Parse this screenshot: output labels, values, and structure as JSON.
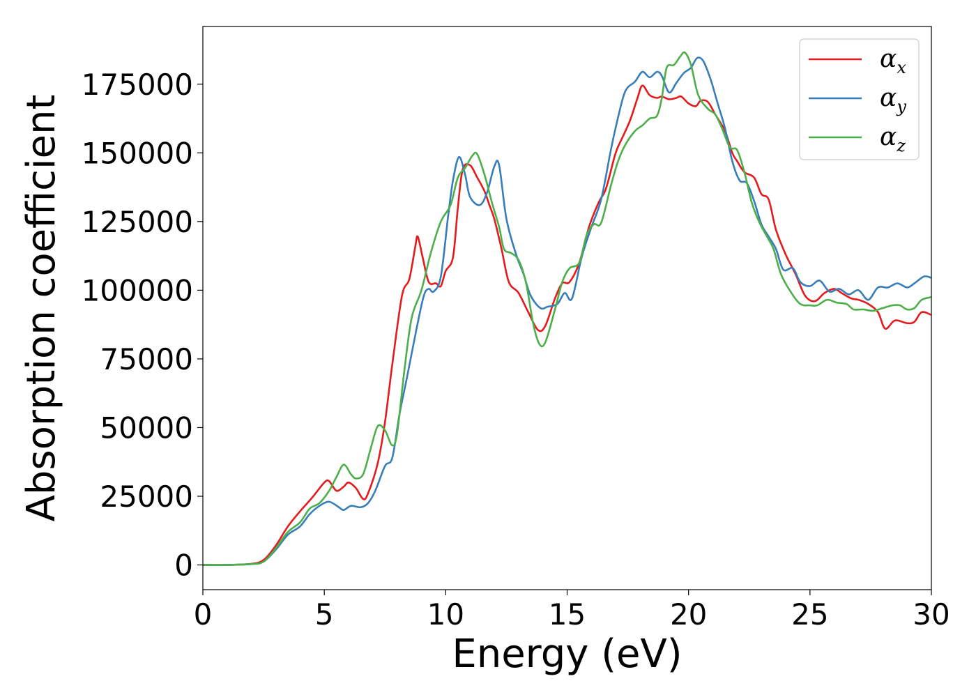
{
  "chart_data": {
    "type": "line",
    "xlabel": "Energy (eV)",
    "ylabel": "Absorption coefficient",
    "xlim": [
      0,
      30
    ],
    "ylim": [
      -9000,
      196000
    ],
    "xticks": [
      0,
      5,
      10,
      15,
      20,
      25,
      30
    ],
    "yticks": [
      0,
      25000,
      50000,
      75000,
      100000,
      125000,
      150000,
      175000
    ],
    "grid": false,
    "legend_position": "top-right",
    "series": [
      {
        "name": "αx",
        "legend_base": "α",
        "legend_sub": "x",
        "color": "#e41a1c",
        "points": [
          [
            0,
            0
          ],
          [
            1,
            0
          ],
          [
            2,
            400
          ],
          [
            2.5,
            1800
          ],
          [
            3,
            7000
          ],
          [
            3.5,
            14000
          ],
          [
            4,
            19500
          ],
          [
            4.5,
            24500
          ],
          [
            5,
            30000
          ],
          [
            5.2,
            30500
          ],
          [
            5.5,
            27000
          ],
          [
            5.8,
            28500
          ],
          [
            6,
            30000
          ],
          [
            6.3,
            28000
          ],
          [
            6.6,
            24000
          ],
          [
            6.8,
            26000
          ],
          [
            7.2,
            37000
          ],
          [
            7.5,
            52000
          ],
          [
            7.8,
            73000
          ],
          [
            8.2,
            98000
          ],
          [
            8.5,
            104000
          ],
          [
            8.75,
            116000
          ],
          [
            8.85,
            119500
          ],
          [
            9.05,
            112000
          ],
          [
            9.3,
            103000
          ],
          [
            9.6,
            102500
          ],
          [
            9.8,
            101500
          ],
          [
            10,
            107000
          ],
          [
            10.3,
            112000
          ],
          [
            10.5,
            130000
          ],
          [
            10.7,
            144000
          ],
          [
            11,
            145500
          ],
          [
            11.3,
            141000
          ],
          [
            11.6,
            136000
          ],
          [
            11.8,
            131000
          ],
          [
            12,
            126000
          ],
          [
            12.3,
            115000
          ],
          [
            12.6,
            103000
          ],
          [
            13,
            99000
          ],
          [
            13.4,
            92000
          ],
          [
            13.8,
            85500
          ],
          [
            14.1,
            87000
          ],
          [
            14.5,
            97000
          ],
          [
            14.8,
            102500
          ],
          [
            15.1,
            103000
          ],
          [
            15.5,
            110000
          ],
          [
            15.9,
            123000
          ],
          [
            16.3,
            132000
          ],
          [
            16.6,
            137000
          ],
          [
            17,
            150000
          ],
          [
            17.3,
            156000
          ],
          [
            17.6,
            162000
          ],
          [
            17.9,
            170000
          ],
          [
            18.1,
            174500
          ],
          [
            18.4,
            171000
          ],
          [
            18.7,
            170000
          ],
          [
            18.9,
            170500
          ],
          [
            19.2,
            169500
          ],
          [
            19.5,
            170000
          ],
          [
            19.7,
            170500
          ],
          [
            20,
            168000
          ],
          [
            20.3,
            167000
          ],
          [
            20.5,
            169000
          ],
          [
            20.8,
            168500
          ],
          [
            21.1,
            164000
          ],
          [
            21.5,
            158000
          ],
          [
            21.8,
            150000
          ],
          [
            22,
            147000
          ],
          [
            22.3,
            143000
          ],
          [
            22.7,
            141000
          ],
          [
            23,
            135000
          ],
          [
            23.3,
            133000
          ],
          [
            23.6,
            122000
          ],
          [
            24,
            113000
          ],
          [
            24.4,
            106000
          ],
          [
            24.8,
            98000
          ],
          [
            25.2,
            96000
          ],
          [
            25.6,
            99000
          ],
          [
            26,
            100500
          ],
          [
            26.3,
            99000
          ],
          [
            26.7,
            97000
          ],
          [
            27,
            96500
          ],
          [
            27.4,
            95000
          ],
          [
            27.8,
            92000
          ],
          [
            28.1,
            86000
          ],
          [
            28.5,
            89000
          ],
          [
            29,
            88000
          ],
          [
            29.3,
            88500
          ],
          [
            29.6,
            92000
          ],
          [
            30,
            91000
          ]
        ]
      },
      {
        "name": "αy",
        "legend_base": "α",
        "legend_sub": "y",
        "color": "#377eb8",
        "points": [
          [
            0,
            0
          ],
          [
            1,
            0
          ],
          [
            2,
            300
          ],
          [
            2.5,
            1200
          ],
          [
            3,
            5500
          ],
          [
            3.5,
            11000
          ],
          [
            4,
            14000
          ],
          [
            4.4,
            18500
          ],
          [
            4.8,
            21500
          ],
          [
            5.2,
            23000
          ],
          [
            5.6,
            21000
          ],
          [
            5.8,
            20000
          ],
          [
            6.1,
            21500
          ],
          [
            6.5,
            21000
          ],
          [
            6.8,
            22500
          ],
          [
            7.1,
            27000
          ],
          [
            7.5,
            36000
          ],
          [
            7.8,
            39000
          ],
          [
            8.1,
            55000
          ],
          [
            8.4,
            68000
          ],
          [
            8.8,
            86000
          ],
          [
            9.1,
            98000
          ],
          [
            9.3,
            100500
          ],
          [
            9.5,
            99500
          ],
          [
            9.8,
            105000
          ],
          [
            10.1,
            127000
          ],
          [
            10.3,
            140000
          ],
          [
            10.55,
            148500
          ],
          [
            10.8,
            142000
          ],
          [
            11,
            134000
          ],
          [
            11.4,
            131000
          ],
          [
            11.7,
            135500
          ],
          [
            12,
            145000
          ],
          [
            12.2,
            145500
          ],
          [
            12.5,
            126000
          ],
          [
            12.9,
            113000
          ],
          [
            13.2,
            106000
          ],
          [
            13.5,
            98000
          ],
          [
            13.9,
            93500
          ],
          [
            14.2,
            94000
          ],
          [
            14.6,
            95000
          ],
          [
            14.9,
            99000
          ],
          [
            15.2,
            97000
          ],
          [
            15.6,
            112000
          ],
          [
            16,
            123000
          ],
          [
            16.4,
            133000
          ],
          [
            16.8,
            151000
          ],
          [
            17.1,
            163000
          ],
          [
            17.4,
            172500
          ],
          [
            17.8,
            176000
          ],
          [
            18.1,
            179500
          ],
          [
            18.4,
            177500
          ],
          [
            18.7,
            179500
          ],
          [
            18.9,
            178000
          ],
          [
            19.2,
            172000
          ],
          [
            19.5,
            175500
          ],
          [
            19.8,
            179000
          ],
          [
            20.1,
            181000
          ],
          [
            20.35,
            184500
          ],
          [
            20.6,
            183500
          ],
          [
            20.9,
            177000
          ],
          [
            21.2,
            168000
          ],
          [
            21.5,
            159000
          ],
          [
            21.8,
            147000
          ],
          [
            22.1,
            140000
          ],
          [
            22.4,
            139000
          ],
          [
            22.7,
            132500
          ],
          [
            23,
            124000
          ],
          [
            23.3,
            119500
          ],
          [
            23.6,
            115000
          ],
          [
            23.9,
            107500
          ],
          [
            24.3,
            108000
          ],
          [
            24.6,
            103000
          ],
          [
            25,
            101500
          ],
          [
            25.4,
            103500
          ],
          [
            25.8,
            99500
          ],
          [
            26.2,
            100500
          ],
          [
            26.6,
            98500
          ],
          [
            27,
            100000
          ],
          [
            27.4,
            96500
          ],
          [
            27.8,
            101000
          ],
          [
            28.2,
            101000
          ],
          [
            28.6,
            102500
          ],
          [
            29,
            101000
          ],
          [
            29.3,
            102500
          ],
          [
            29.7,
            105000
          ],
          [
            30,
            104500
          ]
        ]
      },
      {
        "name": "αz",
        "legend_base": "α",
        "legend_sub": "z",
        "color": "#4daf4a",
        "points": [
          [
            0,
            0
          ],
          [
            1,
            0
          ],
          [
            2,
            300
          ],
          [
            2.5,
            1200
          ],
          [
            3,
            6000
          ],
          [
            3.5,
            12000
          ],
          [
            4,
            15500
          ],
          [
            4.4,
            20500
          ],
          [
            4.8,
            22500
          ],
          [
            5.2,
            27000
          ],
          [
            5.5,
            32000
          ],
          [
            5.8,
            36500
          ],
          [
            6.1,
            33000
          ],
          [
            6.3,
            31500
          ],
          [
            6.6,
            33000
          ],
          [
            6.9,
            42000
          ],
          [
            7.2,
            50500
          ],
          [
            7.5,
            49000
          ],
          [
            7.8,
            43500
          ],
          [
            8,
            48000
          ],
          [
            8.3,
            71000
          ],
          [
            8.6,
            90000
          ],
          [
            9,
            100000
          ],
          [
            9.4,
            114000
          ],
          [
            9.8,
            125000
          ],
          [
            10.2,
            131000
          ],
          [
            10.5,
            141000
          ],
          [
            10.8,
            144500
          ],
          [
            11.1,
            149000
          ],
          [
            11.3,
            149500
          ],
          [
            11.6,
            142000
          ],
          [
            11.9,
            132000
          ],
          [
            12.2,
            123000
          ],
          [
            12.4,
            115000
          ],
          [
            12.7,
            113500
          ],
          [
            13,
            111000
          ],
          [
            13.3,
            103000
          ],
          [
            13.6,
            88000
          ],
          [
            13.85,
            80500
          ],
          [
            14.1,
            81000
          ],
          [
            14.5,
            93000
          ],
          [
            14.8,
            103000
          ],
          [
            15.1,
            108000
          ],
          [
            15.5,
            110000
          ],
          [
            15.8,
            120000
          ],
          [
            16.1,
            124000
          ],
          [
            16.4,
            124500
          ],
          [
            16.8,
            138000
          ],
          [
            17.1,
            147000
          ],
          [
            17.4,
            153000
          ],
          [
            17.8,
            158000
          ],
          [
            18.1,
            160000
          ],
          [
            18.4,
            162500
          ],
          [
            18.7,
            163500
          ],
          [
            18.9,
            170000
          ],
          [
            19.1,
            181000
          ],
          [
            19.4,
            182000
          ],
          [
            19.65,
            185000
          ],
          [
            19.85,
            186500
          ],
          [
            20.1,
            182000
          ],
          [
            20.4,
            171000
          ],
          [
            20.8,
            166000
          ],
          [
            21.1,
            164000
          ],
          [
            21.4,
            158500
          ],
          [
            21.7,
            152000
          ],
          [
            22,
            151000
          ],
          [
            22.3,
            143000
          ],
          [
            22.6,
            132000
          ],
          [
            22.9,
            125000
          ],
          [
            23.2,
            120000
          ],
          [
            23.5,
            115000
          ],
          [
            23.8,
            106000
          ],
          [
            24.2,
            99500
          ],
          [
            24.6,
            95000
          ],
          [
            25,
            94500
          ],
          [
            25.3,
            94500
          ],
          [
            25.7,
            96500
          ],
          [
            26.1,
            95500
          ],
          [
            26.5,
            95000
          ],
          [
            26.8,
            93000
          ],
          [
            27.2,
            93000
          ],
          [
            27.6,
            92500
          ],
          [
            28,
            93500
          ],
          [
            28.4,
            94500
          ],
          [
            28.7,
            94500
          ],
          [
            29,
            93000
          ],
          [
            29.3,
            93500
          ],
          [
            29.6,
            96500
          ],
          [
            30,
            97500
          ]
        ]
      }
    ]
  }
}
